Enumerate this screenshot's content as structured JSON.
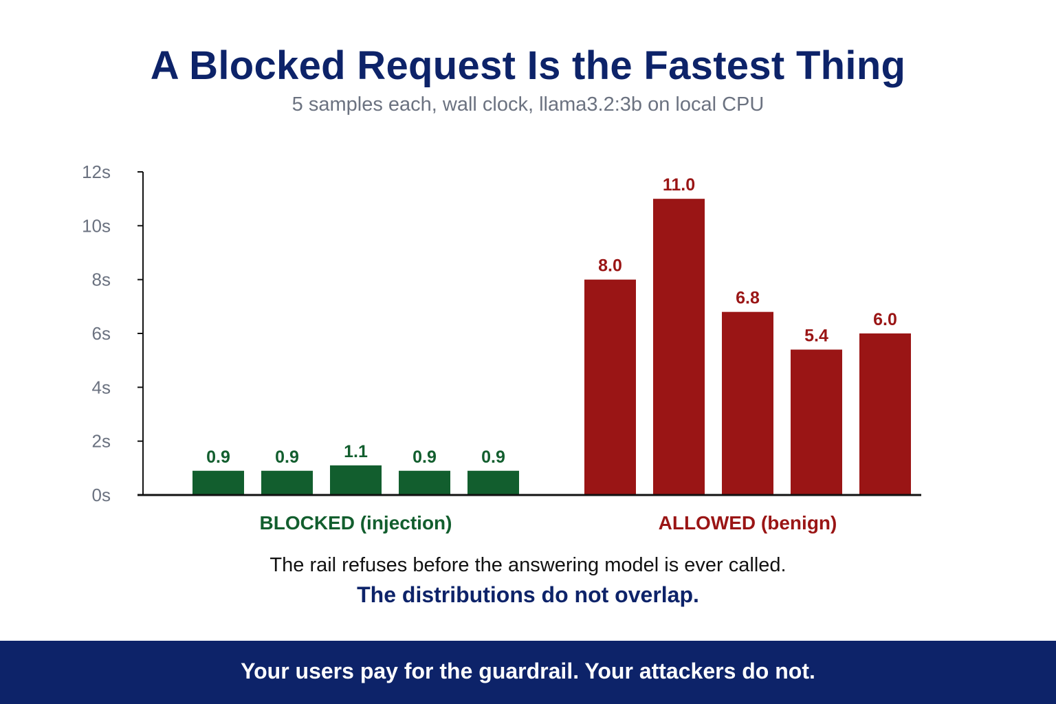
{
  "title": "A Blocked Request Is the Fastest Thing",
  "subtitle": "5 samples each, wall clock, llama3.2:3b on local CPU",
  "chart_data": {
    "type": "bar",
    "ylim": [
      0,
      12
    ],
    "yticks": [
      {
        "value": 0,
        "label": "0s"
      },
      {
        "value": 2,
        "label": "2s"
      },
      {
        "value": 4,
        "label": "4s"
      },
      {
        "value": 6,
        "label": "6s"
      },
      {
        "value": 8,
        "label": "8s"
      },
      {
        "value": 10,
        "label": "10s"
      },
      {
        "value": 12,
        "label": "12s"
      }
    ],
    "grid": false,
    "series": [
      {
        "name": "BLOCKED (injection)",
        "color": "#125e2e",
        "values": [
          0.9,
          0.9,
          1.1,
          0.9,
          0.9
        ],
        "labels": [
          "0.9",
          "0.9",
          "1.1",
          "0.9",
          "0.9"
        ]
      },
      {
        "name": "ALLOWED (benign)",
        "color": "#9a1515",
        "values": [
          8.0,
          11.0,
          6.8,
          5.4,
          6.0
        ],
        "labels": [
          "8.0",
          "11.0",
          "6.8",
          "5.4",
          "6.0"
        ]
      }
    ]
  },
  "caption": "The rail refuses before the answering model is ever called.",
  "caption_strong": "The distributions do not overlap.",
  "footer": "Your users pay for the guardrail. Your attackers do not.",
  "colors": {
    "title": "#0d2369",
    "footer_bg": "#0d2369"
  }
}
